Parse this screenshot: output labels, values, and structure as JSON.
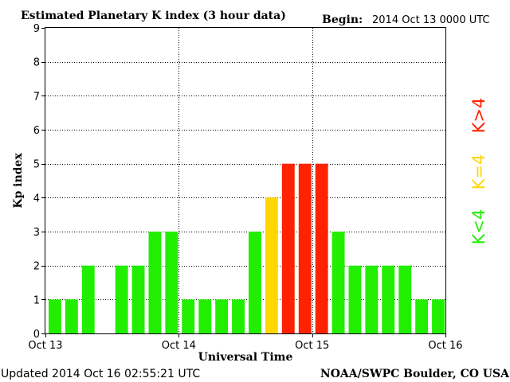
{
  "chart_data": {
    "type": "bar",
    "title": "Estimated Planetary K index (3 hour data)",
    "begin_label": "Begin:",
    "begin_value": "2014 Oct 13 0000 UTC",
    "xlabel": "Universal Time",
    "ylabel": "Kp index",
    "ylim": [
      0,
      9
    ],
    "yticks": [
      "0",
      "1",
      "2",
      "3",
      "4",
      "5",
      "6",
      "7",
      "8",
      "9"
    ],
    "xticks": [
      "Oct 13",
      "Oct 14",
      "Oct 15",
      "Oct 16"
    ],
    "grid": true,
    "values": [
      1,
      1,
      2,
      0,
      2,
      2,
      3,
      3,
      1,
      1,
      1,
      1,
      3,
      4,
      5,
      5,
      5,
      3,
      2,
      2,
      2,
      2,
      1,
      1
    ],
    "interval_hours": 3,
    "legend": [
      {
        "label": "K<4",
        "color": "#22ee00"
      },
      {
        "label": "K=4",
        "color": "#ffd700"
      },
      {
        "label": "K>4",
        "color": "#ff2200"
      }
    ],
    "legend_position": "right"
  },
  "footer": {
    "updated": "Updated 2014 Oct 16 02:55:21 UTC",
    "source": "NOAA/SWPC Boulder, CO USA"
  }
}
